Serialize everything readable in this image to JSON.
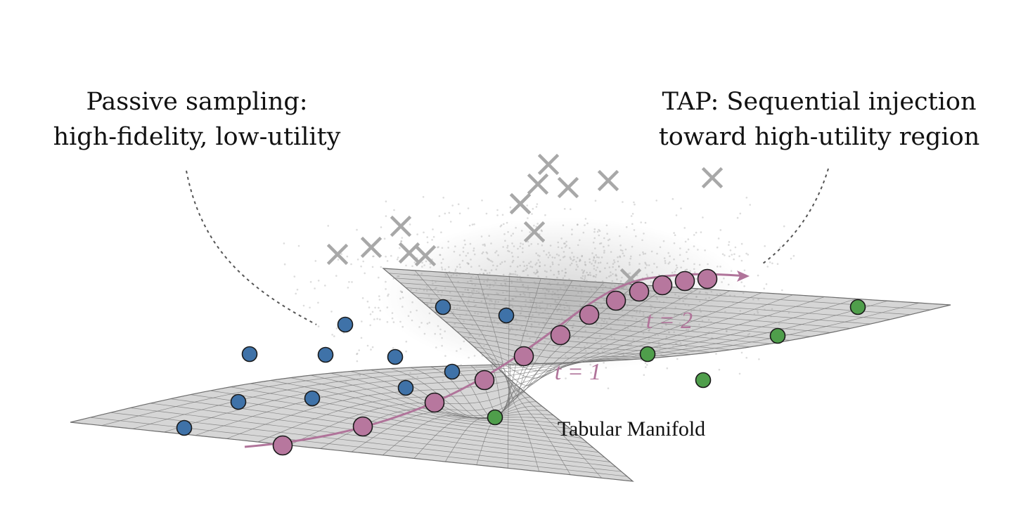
{
  "captions": {
    "passive": {
      "line1": "Passive sampling:",
      "line2": "high-fidelity, low-utility"
    },
    "tap": {
      "line1": "TAP: Sequential injection",
      "line2": "toward high-utility region"
    }
  },
  "labels": {
    "manifold": "Tabular Manifold",
    "step1": "t = 1",
    "step2": "t = 2"
  },
  "colors": {
    "surface": "#d6d6d6",
    "grid": "#6f6f6f",
    "passive_point": "#3f72a8",
    "tap_point": "#b7779e",
    "trajectory": "#b0749a",
    "high_utility_point": "#4f9e4b",
    "rejected_marker": "#a8a8a8",
    "cloud": "#9a9a9a"
  },
  "icons": {
    "passive_point": "blue-circle",
    "tap_point": "pink-circle",
    "high_utility_point": "green-circle",
    "rejected_marker": "gray-cross"
  }
}
